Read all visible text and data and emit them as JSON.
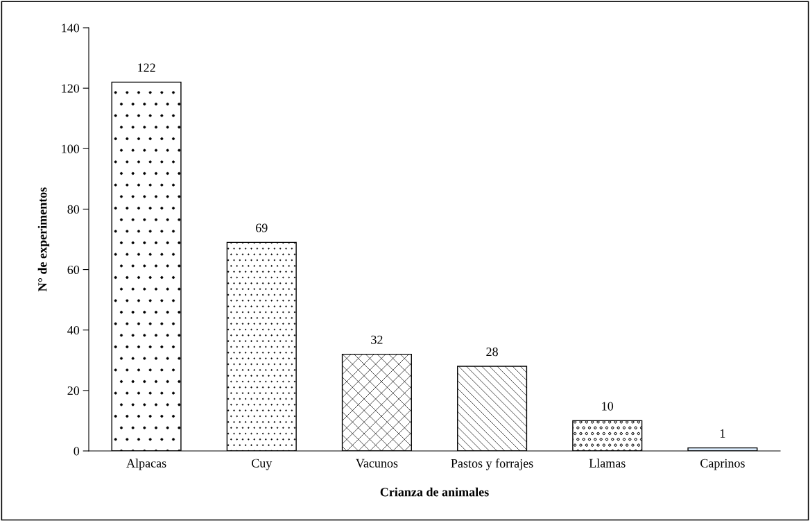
{
  "chart_data": {
    "type": "bar",
    "xlabel": "Crianza de animales",
    "ylabel": "N° de experimentos",
    "categories": [
      "Alpacas",
      "Cuy",
      "Vacunos",
      "Pastos y forrajes",
      "Llamas",
      "Caprinos"
    ],
    "values": [
      122,
      69,
      32,
      28,
      10,
      1
    ],
    "colors": [
      "#000000",
      "#000000",
      "#000000",
      "#000000",
      "#000000",
      "#ddeeff"
    ],
    "ylim": [
      0,
      140
    ],
    "yticks": [
      0,
      20,
      40,
      60,
      80,
      100,
      120,
      140
    ],
    "data_labels": true,
    "grid": false,
    "legend": false
  }
}
